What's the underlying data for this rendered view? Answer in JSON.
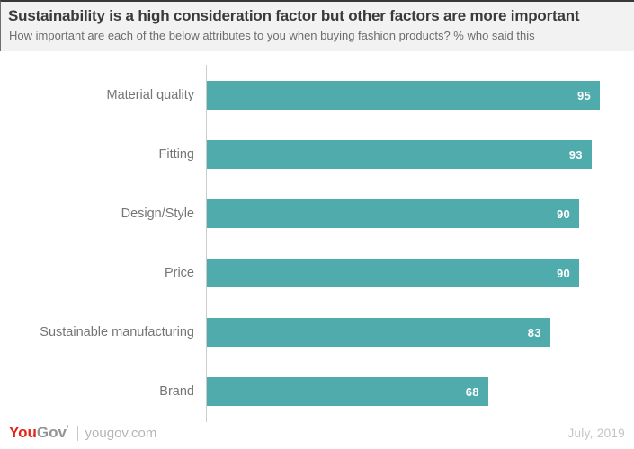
{
  "header": {
    "title": "Sustainability is a high consideration factor but other factors are more important",
    "subtitle": "How important are each of the below attributes to you when buying fashion products? % who said this"
  },
  "chart_data": {
    "type": "bar",
    "orientation": "horizontal",
    "title": "Sustainability is a high consideration factor but other factors are more important",
    "subtitle": "How important are each of the below attributes to you when buying fashion products? % who said this",
    "categories": [
      "Material quality",
      "Fitting",
      "Design/Style",
      "Price",
      "Sustainable manufacturing",
      "Brand"
    ],
    "values": [
      95,
      93,
      90,
      90,
      83,
      68
    ],
    "unit": "%",
    "xlim": [
      0,
      100
    ],
    "grid": false,
    "legend": false,
    "bar_color": "#4fabac",
    "category_label_color": "#757575",
    "value_label_color": "#ffffff"
  },
  "footer": {
    "logo_you": "You",
    "logo_gov": "Gov",
    "logo_mark": "'",
    "site": "yougov.com",
    "date": "July, 2019"
  },
  "colors": {
    "accent_teal": "#4fabac",
    "brand_red": "#e1261c",
    "header_background": "#f2f2f2",
    "axis_line": "#cccccc"
  }
}
